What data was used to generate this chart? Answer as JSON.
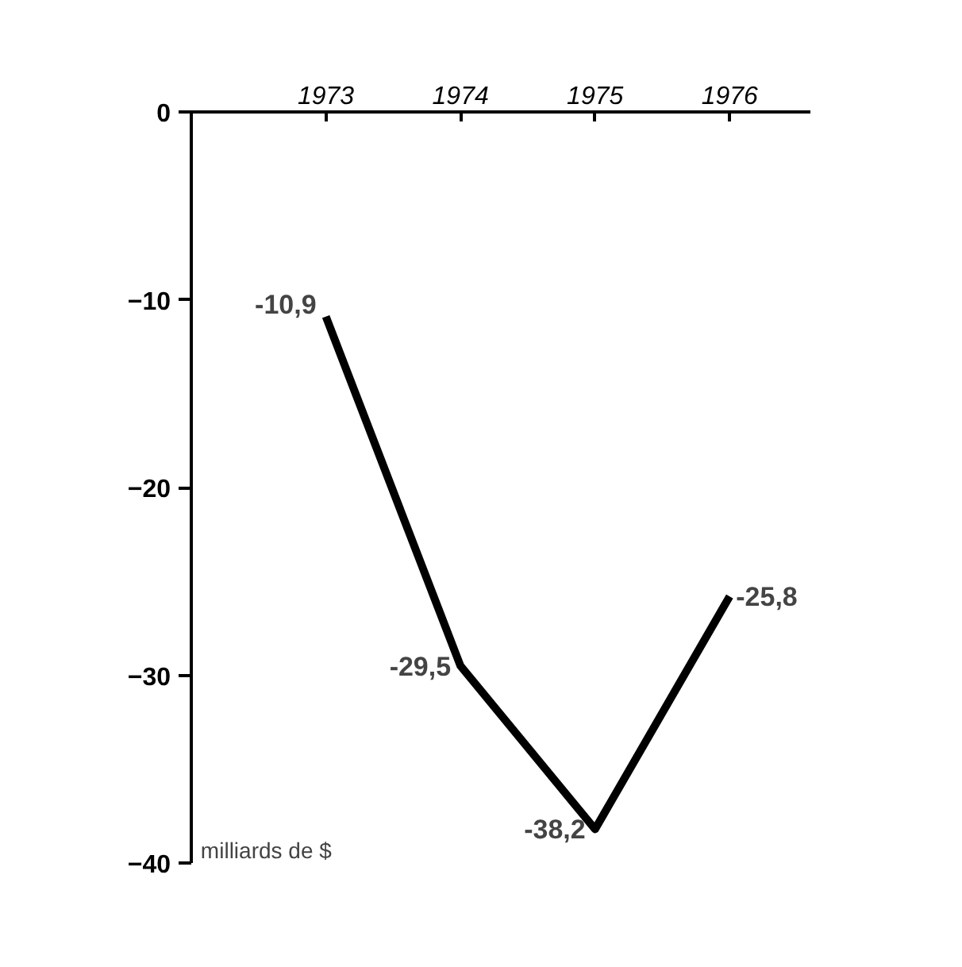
{
  "chart_data": {
    "type": "line",
    "categories": [
      "1973",
      "1974",
      "1975",
      "1976"
    ],
    "values": [
      -10.9,
      -29.5,
      -38.2,
      -25.8
    ],
    "value_labels": [
      "-10,9",
      "-29,5",
      "-38,2",
      "-25,8"
    ],
    "color": "#000000",
    "ylim": [
      -40,
      0
    ],
    "yticks": [
      0,
      -10,
      -20,
      -30,
      -40
    ],
    "annotations": [
      "milliards de $"
    ],
    "grid": false,
    "marker": "none",
    "line_style": "solid"
  }
}
